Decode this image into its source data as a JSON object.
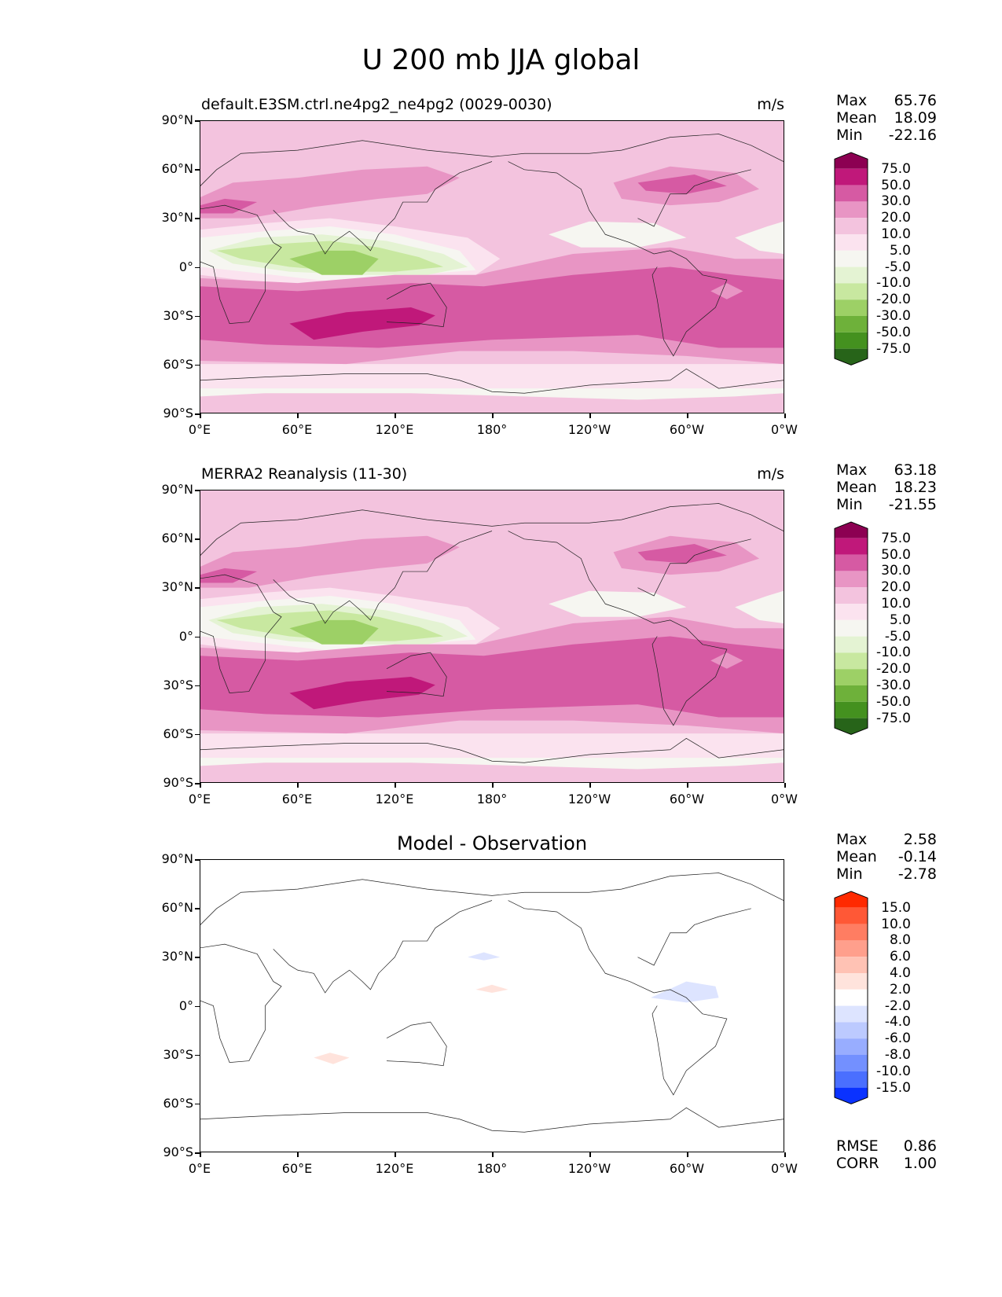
{
  "title": "U 200 mb JJA global",
  "axes": {
    "lat_ticks": [
      "90°N",
      "60°N",
      "30°N",
      "0°",
      "30°S",
      "60°S",
      "90°S"
    ],
    "lon_ticks": [
      "0°E",
      "60°E",
      "120°E",
      "180°",
      "120°W",
      "60°W",
      "0°W"
    ]
  },
  "panels": [
    {
      "title": "default.E3SM.ctrl.ne4pg2_ne4pg2 (0029-0030)",
      "units": "m/s",
      "stats": [
        [
          "Max",
          "65.76"
        ],
        [
          "Mean",
          "18.09"
        ],
        [
          "Min",
          "-22.16"
        ]
      ],
      "colorbar_labels": [
        "75.0",
        "50.0",
        "30.0",
        "20.0",
        "10.0",
        "5.0",
        "-5.0",
        "-10.0",
        "-20.0",
        "-30.0",
        "-50.0",
        "-75.0"
      ]
    },
    {
      "title": "MERRA2 Reanalysis (11-30)",
      "units": "m/s",
      "stats": [
        [
          "Max",
          "63.18"
        ],
        [
          "Mean",
          "18.23"
        ],
        [
          "Min",
          "-21.55"
        ]
      ],
      "colorbar_labels": [
        "75.0",
        "50.0",
        "30.0",
        "20.0",
        "10.0",
        "5.0",
        "-5.0",
        "-10.0",
        "-20.0",
        "-30.0",
        "-50.0",
        "-75.0"
      ]
    },
    {
      "title": "Model - Observation",
      "units": "",
      "stats": [
        [
          "Max",
          "2.58"
        ],
        [
          "Mean",
          "-0.14"
        ],
        [
          "Min",
          "-2.78"
        ]
      ],
      "colorbar_labels": [
        "15.0",
        "10.0",
        "8.0",
        "6.0",
        "4.0",
        "2.0",
        "-2.0",
        "-4.0",
        "-6.0",
        "-8.0",
        "-10.0",
        "-15.0"
      ],
      "metrics": [
        [
          "RMSE",
          "0.86"
        ],
        [
          "CORR",
          "1.00"
        ]
      ]
    }
  ],
  "colors": {
    "field_scale": [
      "#8c0052",
      "#c0187a",
      "#d65aa3",
      "#e895c4",
      "#f3c3de",
      "#fbe3ef",
      "#f6f6f1",
      "#e4f3d3",
      "#c8e8a0",
      "#9dd066",
      "#6eb13a",
      "#44911f",
      "#276419"
    ],
    "diff_scale": [
      "#ff2a00",
      "#ff5836",
      "#ff7d62",
      "#ff9f8c",
      "#ffc2b4",
      "#ffe3dc",
      "#ffffff",
      "#dde4ff",
      "#bccaff",
      "#98adff",
      "#7390ff",
      "#4a6fff",
      "#0a32ff"
    ]
  }
}
